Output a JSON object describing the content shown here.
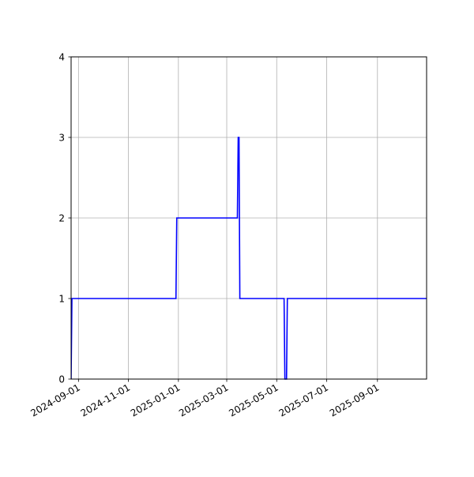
{
  "chart_data": {
    "type": "line",
    "title": "",
    "xlabel": "",
    "ylabel": "",
    "x_axis_type": "date",
    "xlim": [
      "2024-08-23",
      "2025-10-31"
    ],
    "ylim": [
      0,
      4
    ],
    "grid": true,
    "legend": "none",
    "x_ticks": [
      "2024-09-01",
      "2024-11-01",
      "2025-01-01",
      "2025-03-01",
      "2025-05-01",
      "2025-07-01",
      "2025-09-01"
    ],
    "y_ticks": [
      0,
      1,
      2,
      3,
      4
    ],
    "series": [
      {
        "color": "#0000ff",
        "x": [
          "2024-08-23",
          "2024-08-24",
          "2024-12-29",
          "2024-12-30",
          "2025-03-14",
          "2025-03-15",
          "2025-03-16",
          "2025-03-17",
          "2025-05-10",
          "2025-05-11",
          "2025-05-13",
          "2025-05-14",
          "2025-10-31"
        ],
        "y": [
          0,
          1,
          1,
          2,
          2,
          3,
          3,
          1,
          1,
          0,
          0,
          1,
          1
        ]
      }
    ]
  }
}
